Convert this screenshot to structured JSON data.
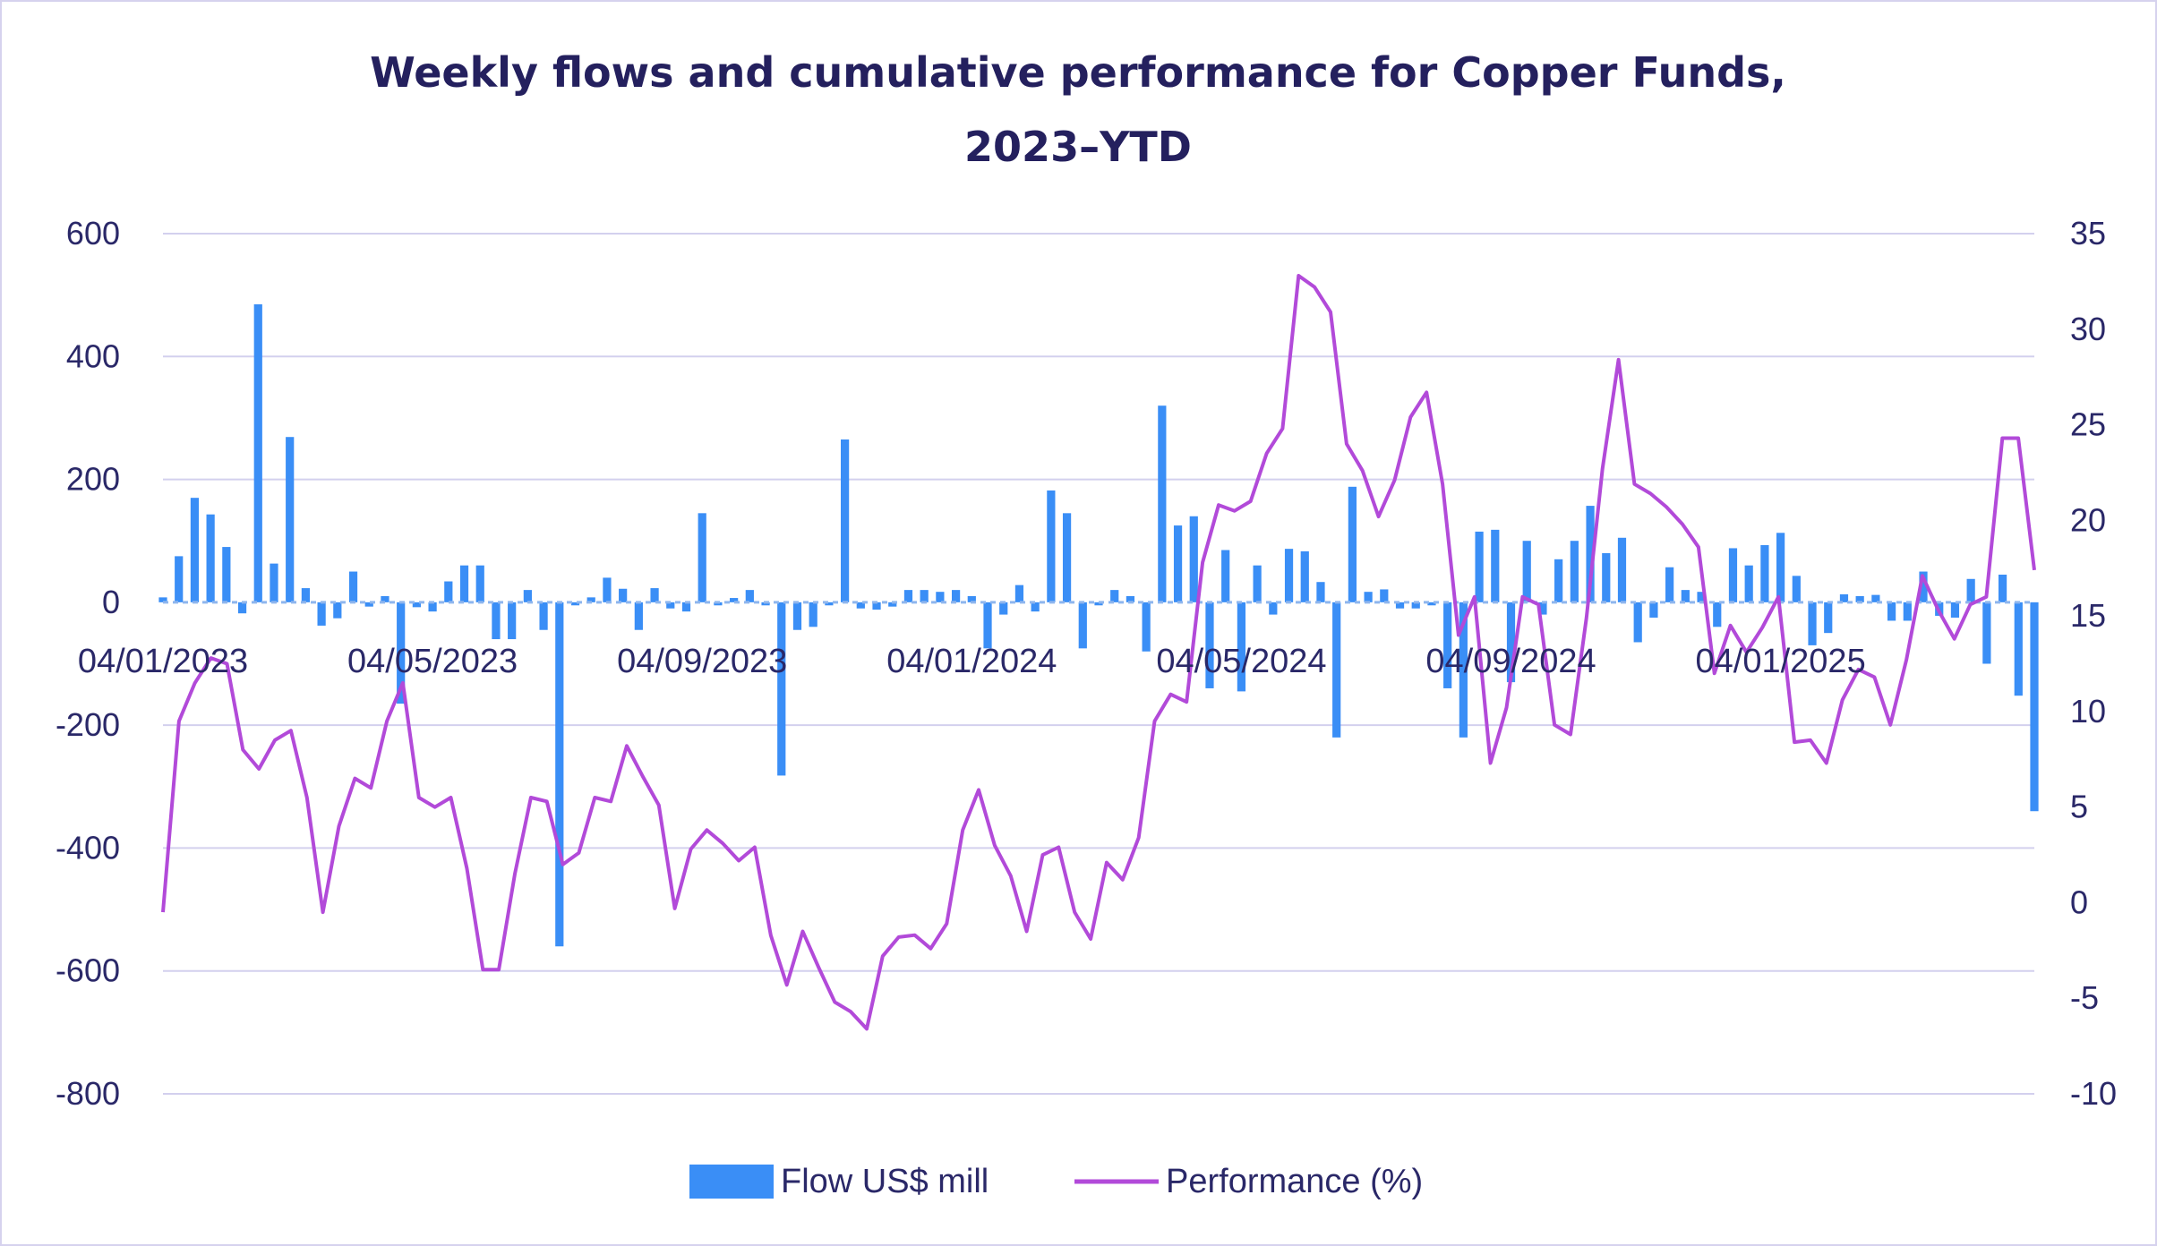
{
  "chart_data": {
    "type": "bar+line",
    "title_line1": "Weekly flows and cumulative performance for Copper Funds,",
    "title_line2": "2023–YTD",
    "x_tick_labels": [
      "04/01/2023",
      "04/05/2023",
      "04/09/2023",
      "04/01/2024",
      "04/05/2024",
      "04/09/2024",
      "04/01/2025"
    ],
    "y_left": {
      "ticks": [
        "600",
        "400",
        "200",
        "0",
        "-200",
        "-400",
        "-600",
        "-800"
      ],
      "ylim": [
        -800,
        600
      ]
    },
    "y_right": {
      "ticks": [
        "35",
        "30",
        "25",
        "20",
        "15",
        "10",
        "5",
        "0",
        "-5",
        "-10"
      ],
      "ylim": [
        -10,
        35
      ]
    },
    "grid": true,
    "legend_position": "bottom",
    "series": [
      {
        "name": "Flow US$ mill",
        "type": "bar",
        "axis": "left",
        "color": "#3a8ef6",
        "values": [
          8,
          75,
          170,
          143,
          90,
          -18,
          485,
          63,
          269,
          23,
          -38,
          -26,
          50,
          -7,
          10,
          -165,
          -8,
          -15,
          34,
          60,
          60,
          -60,
          -60,
          20,
          -45,
          -560,
          -5,
          8,
          40,
          22,
          -45,
          23,
          -10,
          -15,
          145,
          -5,
          7,
          20,
          -5,
          -282,
          -45,
          -40,
          -5,
          265,
          -10,
          -12,
          -7,
          20,
          20,
          17,
          20,
          10,
          -75,
          -20,
          28,
          -15,
          182,
          145,
          -75,
          -5,
          20,
          10,
          -80,
          320,
          125,
          140,
          -140,
          85,
          -145,
          60,
          -20,
          87,
          83,
          33,
          -220,
          188,
          17,
          21,
          -10,
          -10,
          -5,
          -140,
          -220,
          115,
          118,
          -130,
          100,
          -20,
          70,
          100,
          157,
          80,
          105,
          -65,
          -25,
          57,
          20,
          17,
          -40,
          88,
          60,
          93,
          113,
          43,
          -70,
          -50,
          13,
          10,
          12,
          -30,
          -30,
          50,
          -22,
          -25,
          38,
          -100,
          45,
          -152,
          -340
        ]
      },
      {
        "name": "Performance (%)",
        "type": "line",
        "axis": "right",
        "color": "#b24ad9",
        "values": [
          -0.5,
          9.5,
          11.5,
          12.8,
          12.5,
          8,
          7,
          8.5,
          9,
          5.5,
          -0.5,
          4,
          6.5,
          6,
          9.5,
          11.5,
          5.5,
          5,
          5.5,
          1.8,
          -3.5,
          -3.5,
          1.5,
          5.5,
          5.3,
          2,
          2.6,
          5.5,
          5.3,
          8.2,
          6.6,
          5.1,
          -0.3,
          2.8,
          3.8,
          3.1,
          2.2,
          2.9,
          -1.7,
          -4.3,
          -1.5,
          -3.4,
          -5.2,
          -5.7,
          -6.6,
          -2.8,
          -1.8,
          -1.7,
          -2.4,
          -1.1,
          3.8,
          5.9,
          3,
          1.4,
          -1.5,
          2.5,
          2.9,
          -0.5,
          -1.9,
          2.1,
          1.2,
          3.4,
          9.5,
          10.9,
          10.5,
          17.8,
          20.8,
          20.5,
          21,
          23.5,
          24.8,
          32.8,
          32.2,
          30.9,
          24,
          22.6,
          20.2,
          22.1,
          25.4,
          26.7,
          21.9,
          14,
          16,
          7.3,
          10.2,
          16,
          15.6,
          9.3,
          8.8,
          14.9,
          22.7,
          28.4,
          21.9,
          21.4,
          20.7,
          19.8,
          18.6,
          12,
          14.5,
          13.1,
          14.4,
          16,
          8.4,
          8.5,
          7.3,
          10.6,
          12.2,
          11.8,
          9.3,
          12.7,
          17.1,
          15.3,
          13.8,
          15.6,
          16,
          24.3,
          24.3,
          17.4
        ]
      }
    ]
  }
}
